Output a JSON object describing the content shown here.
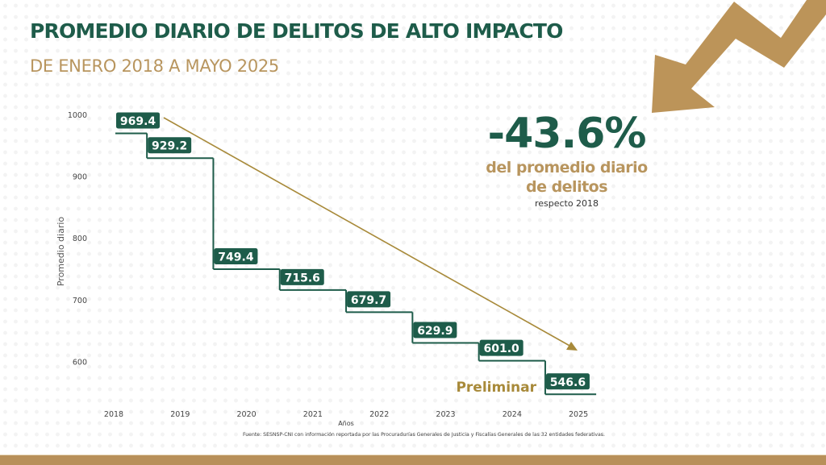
{
  "header": {
    "title": "PROMEDIO DIARIO DE DELITOS DE ALTO IMPACTO",
    "subtitle": "DE ENERO 2018 A MAYO 2025"
  },
  "highlight": {
    "percent": "-43.6%",
    "line1": "del promedio diario",
    "line2": "de delitos",
    "note": "respecto 2018"
  },
  "colors": {
    "green": "#1e5c4a",
    "gold": "#b8955e",
    "trend": "#a88a3a",
    "bar_bottom": "#b8905a"
  },
  "icons": {
    "decorative_arrow": "zigzag-down-arrow-icon"
  },
  "chart_data": {
    "type": "line",
    "style": "step",
    "title": "PROMEDIO DIARIO DE DELITOS DE ALTO IMPACTO",
    "subtitle": "DE ENERO 2018 A MAYO 2025",
    "xlabel": "Años",
    "ylabel": "Promedio diario",
    "categories": [
      "2018",
      "2019",
      "2020",
      "2021",
      "2022",
      "2023",
      "2024",
      "2025"
    ],
    "values": [
      969.4,
      929.2,
      749.4,
      715.6,
      679.7,
      629.9,
      601.0,
      546.6
    ],
    "data_labels": [
      "969.4",
      "929.2",
      "749.4",
      "715.6",
      "679.7",
      "629.9",
      "601.0",
      "546.6"
    ],
    "yticks": [
      600,
      700,
      800,
      900,
      1000
    ],
    "ytick_labels": [
      "600",
      "700",
      "800",
      "900",
      "1000"
    ],
    "ylim": [
      540,
      1000
    ],
    "grid": false,
    "trend_arrow": "declining",
    "annotations": [
      "Preliminar"
    ],
    "source": "Fuente: SESNSP-CNI con información reportada por las Procuradurías Generales de Justicia y Fiscalías Generales de las 32 entidades federativas."
  }
}
